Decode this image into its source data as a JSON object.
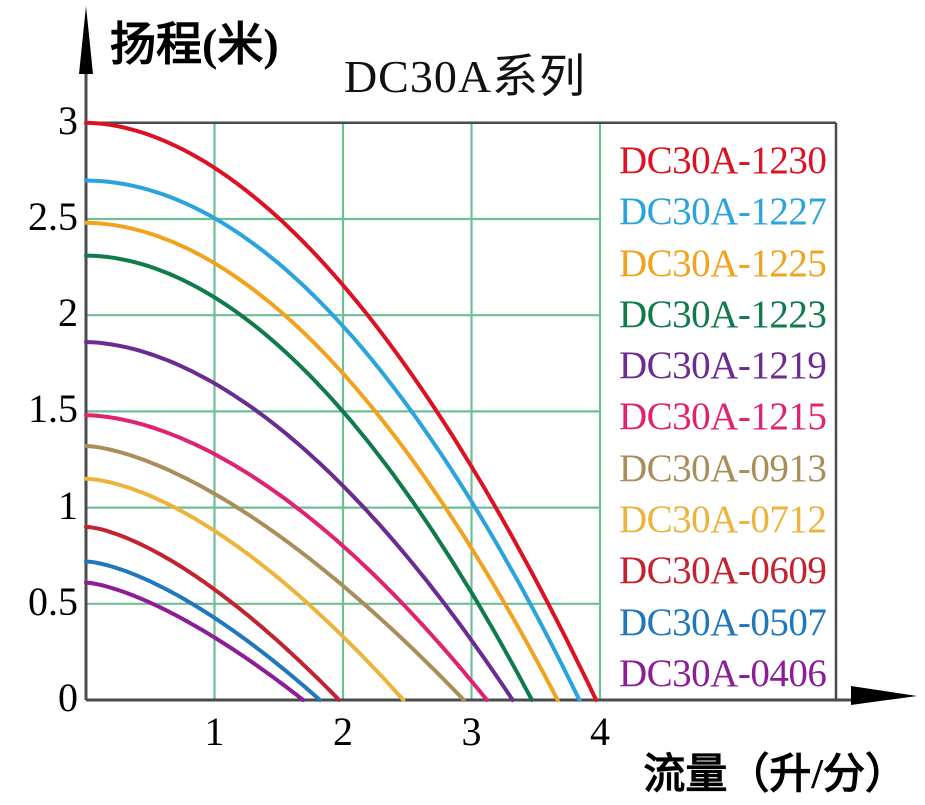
{
  "title": "DC30A系列",
  "y_axis_label": "扬程(米)",
  "x_axis_label": "流量（升/分）",
  "chart_data": {
    "type": "line",
    "title": "DC30A系列",
    "xlabel": "流量（升/分）",
    "ylabel": "扬程(米)",
    "xlim": [
      0,
      4.6
    ],
    "ylim": [
      0,
      3
    ],
    "x_ticks": [
      1,
      2,
      3,
      4
    ],
    "y_ticks": [
      3,
      2.5,
      2,
      1.5,
      1,
      0.5,
      0
    ],
    "v_gridlines": [
      1,
      2,
      3,
      4
    ],
    "h_gridlines": [
      0.5,
      1,
      1.5,
      2,
      2.5
    ],
    "grid": true,
    "legend_position": "right-inside",
    "colors": {
      "grid": "#6ebf95",
      "axis": "#4b4b4e",
      "arrow": "#000000",
      "text": "#000000"
    },
    "series": [
      {
        "name": "DC30A-1230",
        "color": "#dc1222",
        "head_at_zero_flow_m": 3.0,
        "max_flow_l_per_min": 3.97,
        "curve_exponent": 1.85,
        "points": [
          [
            0,
            3.0
          ],
          [
            1,
            2.77
          ],
          [
            2,
            2.16
          ],
          [
            3,
            1.21
          ],
          [
            3.97,
            0
          ]
        ]
      },
      {
        "name": "DC30A-1227",
        "color": "#2aa4dc",
        "head_at_zero_flow_m": 2.7,
        "max_flow_l_per_min": 3.84,
        "curve_exponent": 1.95,
        "points": [
          [
            0,
            2.7
          ],
          [
            1,
            2.5
          ],
          [
            2,
            1.94
          ],
          [
            3,
            1.03
          ],
          [
            3.84,
            0
          ]
        ]
      },
      {
        "name": "DC30A-1225",
        "color": "#f2a31e",
        "head_at_zero_flow_m": 2.48,
        "max_flow_l_per_min": 3.67,
        "curve_exponent": 1.9,
        "points": [
          [
            0,
            2.48
          ],
          [
            1,
            2.27
          ],
          [
            2,
            1.7
          ],
          [
            3,
            0.79
          ],
          [
            3.67,
            0
          ]
        ]
      },
      {
        "name": "DC30A-1223",
        "color": "#107b4a",
        "head_at_zero_flow_m": 2.31,
        "max_flow_l_per_min": 3.47,
        "curve_exponent": 1.9,
        "points": [
          [
            0,
            2.31
          ],
          [
            1,
            2.09
          ],
          [
            2,
            1.5
          ],
          [
            3,
            0.56
          ],
          [
            3.47,
            0
          ]
        ]
      },
      {
        "name": "DC30A-1219",
        "color": "#6b2b90",
        "head_at_zero_flow_m": 1.86,
        "max_flow_l_per_min": 3.32,
        "curve_exponent": 1.8,
        "points": [
          [
            0,
            1.86
          ],
          [
            1,
            1.65
          ],
          [
            2,
            1.11
          ],
          [
            3,
            0.31
          ],
          [
            3.32,
            0
          ]
        ]
      },
      {
        "name": "DC30A-1215",
        "color": "#e02371",
        "head_at_zero_flow_m": 1.48,
        "max_flow_l_per_min": 3.12,
        "curve_exponent": 1.75,
        "points": [
          [
            0,
            1.48
          ],
          [
            1,
            1.28
          ],
          [
            2,
            0.8
          ],
          [
            3,
            0.1
          ],
          [
            3.12,
            0
          ]
        ]
      },
      {
        "name": "DC30A-0913",
        "color": "#a98e5b",
        "head_at_zero_flow_m": 1.32,
        "max_flow_l_per_min": 2.94,
        "curve_exponent": 1.55,
        "points": [
          [
            0,
            1.32
          ],
          [
            1,
            1.07
          ],
          [
            2,
            0.59
          ],
          [
            2.5,
            0.29
          ],
          [
            2.94,
            0
          ]
        ]
      },
      {
        "name": "DC30A-0712",
        "color": "#edb43c",
        "head_at_zero_flow_m": 1.15,
        "max_flow_l_per_min": 2.47,
        "curve_exponent": 1.6,
        "points": [
          [
            0,
            1.15
          ],
          [
            1,
            0.88
          ],
          [
            2,
            0.33
          ],
          [
            2.47,
            0
          ]
        ]
      },
      {
        "name": "DC30A-0609",
        "color": "#c2232e",
        "head_at_zero_flow_m": 0.9,
        "max_flow_l_per_min": 1.97,
        "curve_exponent": 1.5,
        "points": [
          [
            0,
            0.9
          ],
          [
            0.5,
            0.79
          ],
          [
            1,
            0.57
          ],
          [
            1.5,
            0.3
          ],
          [
            1.97,
            0
          ]
        ]
      },
      {
        "name": "DC30A-0507",
        "color": "#1f77bc",
        "head_at_zero_flow_m": 0.72,
        "max_flow_l_per_min": 1.82,
        "curve_exponent": 1.5,
        "points": [
          [
            0,
            0.72
          ],
          [
            0.5,
            0.62
          ],
          [
            1,
            0.43
          ],
          [
            1.5,
            0.18
          ],
          [
            1.82,
            0
          ]
        ]
      },
      {
        "name": "DC30A-0406",
        "color": "#8c1d96",
        "head_at_zero_flow_m": 0.61,
        "max_flow_l_per_min": 1.69,
        "curve_exponent": 1.45,
        "points": [
          [
            0,
            0.61
          ],
          [
            0.5,
            0.51
          ],
          [
            1,
            0.33
          ],
          [
            1.5,
            0.1
          ],
          [
            1.69,
            0
          ]
        ]
      }
    ]
  }
}
